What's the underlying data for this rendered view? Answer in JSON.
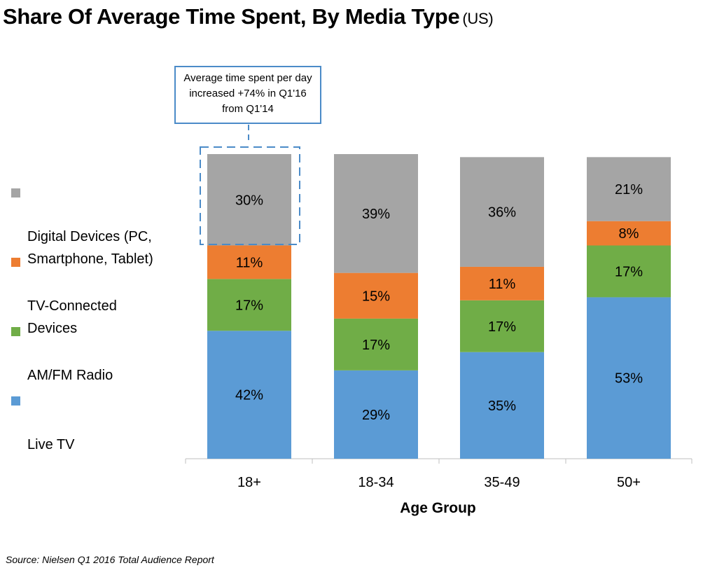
{
  "title": "Share Of Average Time Spent, By Media Type",
  "subtitle": "(US)",
  "source": "Source: Nielsen Q1 2016 Total Audience Report",
  "callout": "Average time spent per day increased +74% in Q1'16 from Q1'14",
  "chart_data": {
    "type": "bar",
    "stacked": true,
    "title": "Share Of Average Time Spent, By Media Type (US)",
    "xlabel": "Age Group",
    "ylabel": "",
    "ylim": [
      0,
      100
    ],
    "categories": [
      "18+",
      "18-34",
      "35-49",
      "50+"
    ],
    "series": [
      {
        "name": "Live TV",
        "color": "#5b9bd5",
        "values": [
          42,
          29,
          35,
          53
        ]
      },
      {
        "name": "AM/FM Radio",
        "color": "#70ad47",
        "values": [
          17,
          17,
          17,
          17
        ]
      },
      {
        "name": "TV-Connected Devices",
        "color": "#ed7d31",
        "values": [
          11,
          15,
          11,
          8
        ]
      },
      {
        "name": "Digital Devices (PC, Smartphone, Tablet)",
        "color": "#a5a5a5",
        "values": [
          30,
          39,
          36,
          21
        ]
      }
    ],
    "value_suffix": "%",
    "legend_position": "left"
  },
  "legend": [
    {
      "label": "Digital Devices (PC,\nSmartphone, Tablet)",
      "color": "#a5a5a5"
    },
    {
      "label": "TV-Connected\nDevices",
      "color": "#ed7d31"
    },
    {
      "label": "AM/FM Radio",
      "color": "#70ad47"
    },
    {
      "label": "Live TV",
      "color": "#5b9bd5"
    }
  ]
}
